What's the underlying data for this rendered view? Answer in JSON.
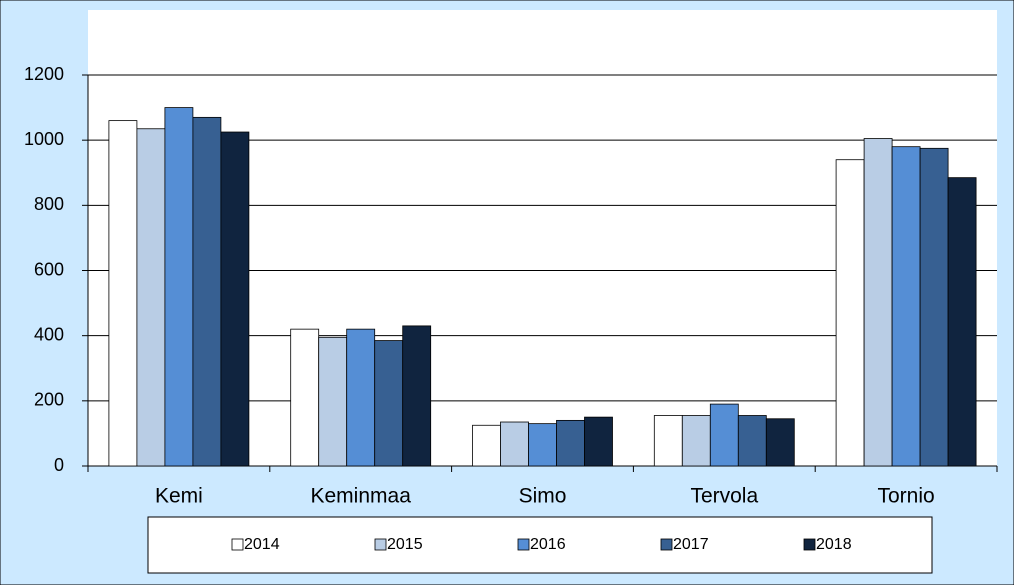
{
  "chart_data": {
    "type": "bar",
    "categories": [
      "Kemi",
      "Keminmaa",
      "Simo",
      "Tervola",
      "Tornio"
    ],
    "series": [
      {
        "name": "2014",
        "color": "#ffffff",
        "values": [
          1060,
          420,
          125,
          155,
          940
        ]
      },
      {
        "name": "2015",
        "color": "#b9cde5",
        "values": [
          1035,
          395,
          135,
          155,
          1005
        ]
      },
      {
        "name": "2016",
        "color": "#558ed5",
        "values": [
          1100,
          420,
          130,
          190,
          980
        ]
      },
      {
        "name": "2017",
        "color": "#376092",
        "values": [
          1070,
          385,
          140,
          155,
          975
        ]
      },
      {
        "name": "2018",
        "color": "#10243f",
        "values": [
          1025,
          430,
          150,
          145,
          885
        ]
      }
    ],
    "ylim": [
      0,
      1200
    ],
    "yticks": [
      0,
      200,
      400,
      600,
      800,
      1000,
      1200
    ],
    "grid": true,
    "legend": "bottom"
  }
}
